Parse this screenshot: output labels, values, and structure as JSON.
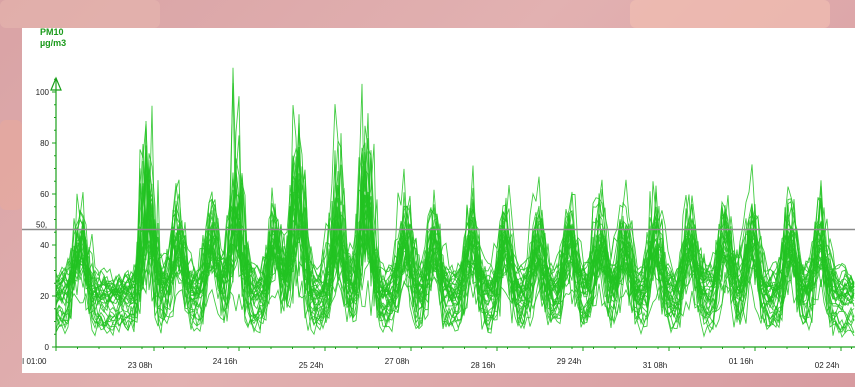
{
  "chart_data": {
    "type": "line",
    "title": "",
    "ylabel_lines": [
      "PM10",
      "µg/m3"
    ],
    "xlabel": "",
    "ylim": [
      0,
      115
    ],
    "y_ticks": [
      0,
      20,
      40,
      60,
      80,
      100
    ],
    "limit_line": {
      "value": 50,
      "label": "50,"
    },
    "x_tick_labels": [
      "I 01:00",
      "23 08h",
      "24 16h",
      "25 24h",
      "27 08h",
      "28 16h",
      "29 24h",
      "31 08h",
      "01 16h",
      "02 24h"
    ],
    "series_count": 32,
    "series_color": "#22c322",
    "grid": false,
    "legend": "none"
  }
}
